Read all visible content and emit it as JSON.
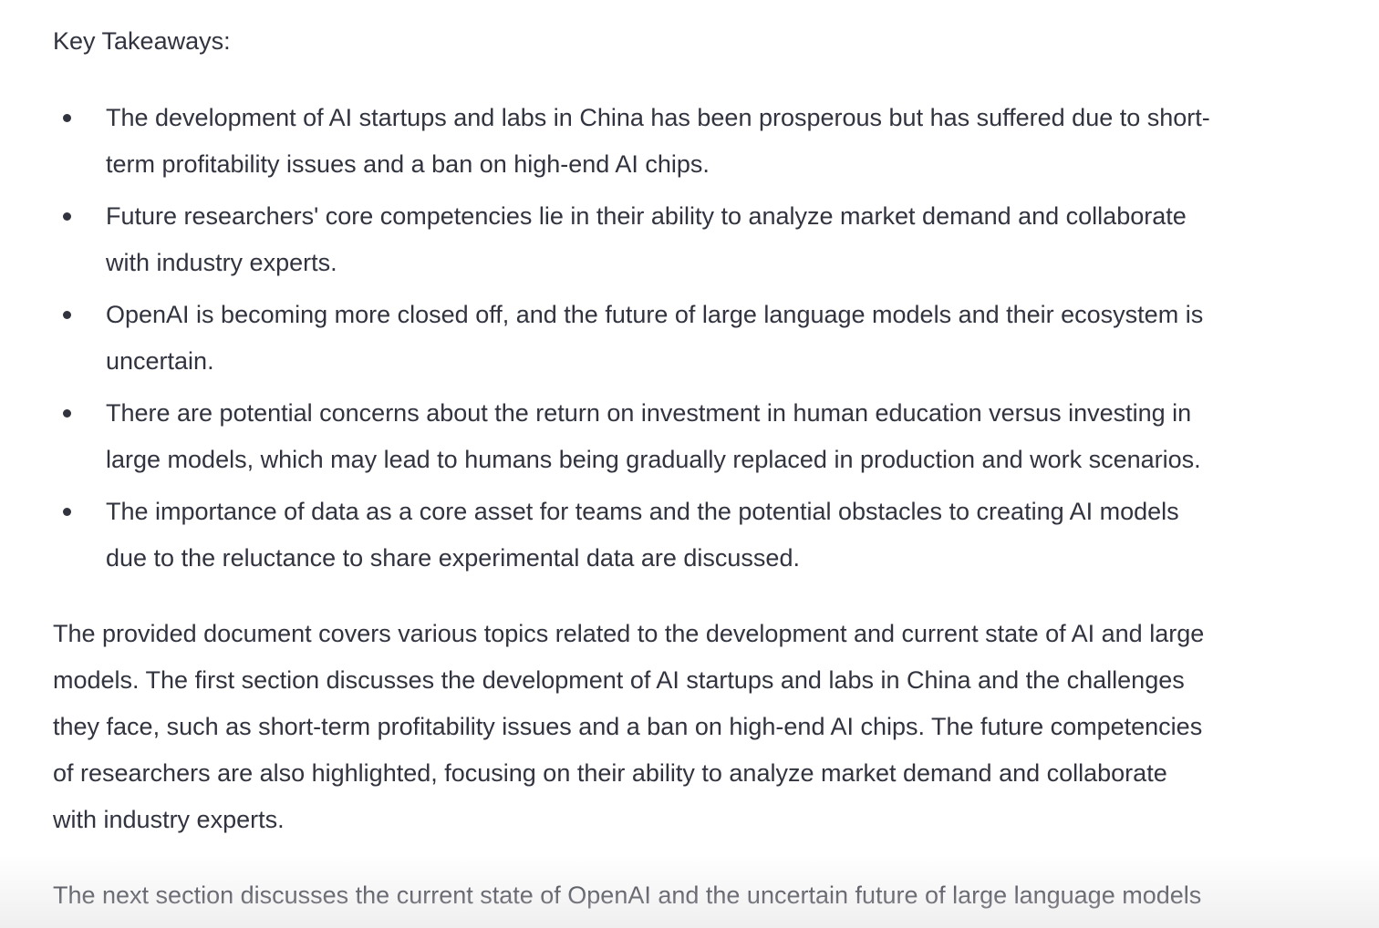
{
  "heading": "Key Takeaways:",
  "bullets": [
    [
      "The development of AI startups and labs in China has been prosperous but has suffered due to short-",
      "term profitability issues and a ban on high-end AI chips."
    ],
    [
      "Future researchers' core competencies lie in their ability to analyze market demand and collaborate",
      "with industry experts."
    ],
    [
      "OpenAI is becoming more closed off, and the future of large language models and their ecosystem is",
      "uncertain."
    ],
    [
      "There are potential concerns about the return on investment in human education versus investing in",
      "large models, which may lead to humans being gradually replaced in production and work scenarios."
    ],
    [
      "The importance of data as a core asset for teams and the potential obstacles to creating AI models",
      "due to the reluctance to share experimental data are discussed."
    ]
  ],
  "paragraphs": [
    [
      "The provided document covers various topics related to the development and current state of AI and large",
      "models. The first section discusses the development of AI startups and labs in China and the challenges",
      "they face, such as short-term profitability issues and a ban on high-end AI chips. The future competencies",
      "of researchers are also highlighted, focusing on their ability to analyze market demand and collaborate",
      "with industry experts."
    ],
    [
      "The next section discusses the current state of OpenAI and the uncertain future of large language models"
    ]
  ]
}
